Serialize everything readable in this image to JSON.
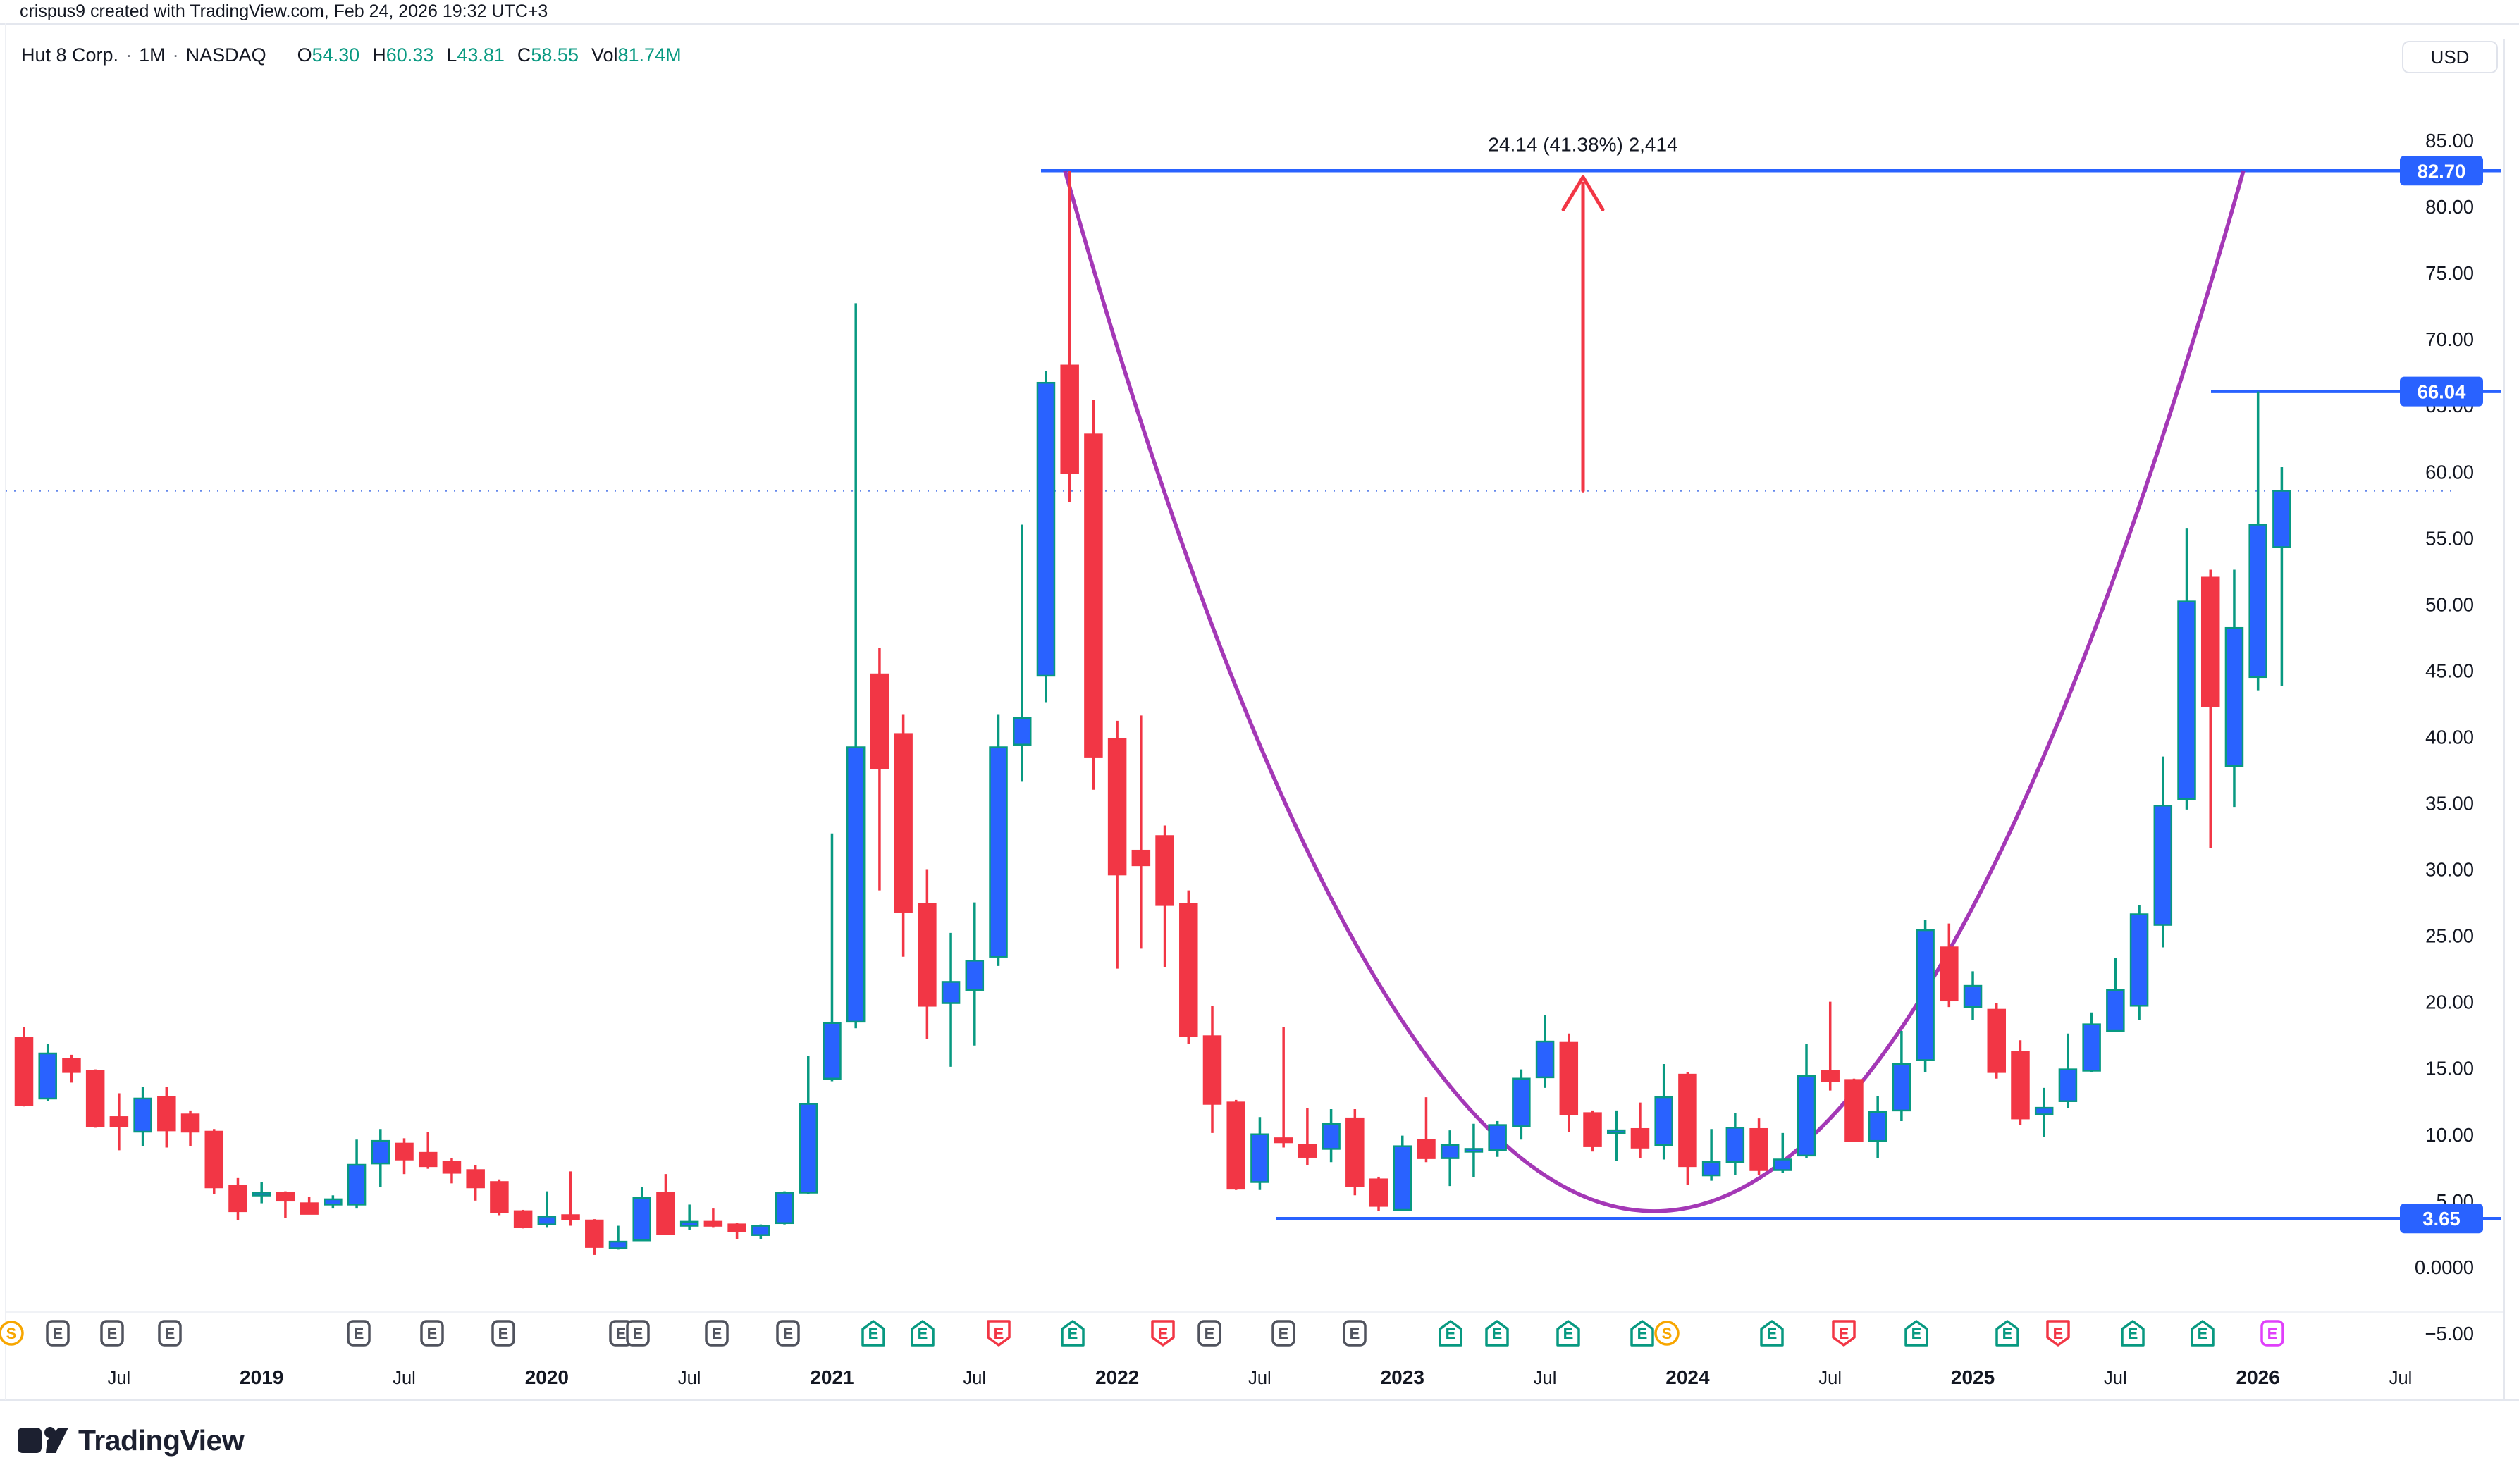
{
  "attribution": "crispus9 created with TradingView.com, Feb 24, 2026 19:32 UTC+3",
  "header": {
    "symbol_title": "Hut 8 Corp.",
    "interval": "1M",
    "exchange": "NASDAQ",
    "ohlc": [
      {
        "label": "O",
        "value": "54.30"
      },
      {
        "label": "H",
        "value": "60.33"
      },
      {
        "label": "L",
        "value": "43.81"
      },
      {
        "label": "C",
        "value": "58.55"
      },
      {
        "label": "Vol",
        "value": "81.74M"
      }
    ],
    "currency": "USD"
  },
  "logo_text": "TradingView",
  "chart_data": {
    "type": "candlestick",
    "title": "Hut 8 Corp. · 1M · NASDAQ",
    "ylabel": "USD",
    "ylim": [
      -7.5,
      87.5
    ],
    "grid": false,
    "price_ticks": [
      {
        "label": "85.00",
        "price": 85
      },
      {
        "label": "80.00",
        "price": 80
      },
      {
        "label": "75.00",
        "price": 75
      },
      {
        "label": "70.00",
        "price": 70
      },
      {
        "label": "65.00",
        "price": 65
      },
      {
        "label": "60.00",
        "price": 60
      },
      {
        "label": "55.00",
        "price": 55
      },
      {
        "label": "50.00",
        "price": 50
      },
      {
        "label": "45.00",
        "price": 45
      },
      {
        "label": "40.00",
        "price": 40
      },
      {
        "label": "35.00",
        "price": 35
      },
      {
        "label": "30.00",
        "price": 30
      },
      {
        "label": "25.00",
        "price": 25
      },
      {
        "label": "20.00",
        "price": 20
      },
      {
        "label": "15.00",
        "price": 15
      },
      {
        "label": "10.00",
        "price": 10
      },
      {
        "label": "5.00",
        "price": 5
      },
      {
        "label": "0.0000",
        "price": 0
      },
      {
        "label": "−5.00",
        "price": -5
      }
    ],
    "time_labels": [
      {
        "text": "Jul",
        "index": 4,
        "bold": false
      },
      {
        "text": "2019",
        "index": 10,
        "bold": true
      },
      {
        "text": "Jul",
        "index": 16,
        "bold": false
      },
      {
        "text": "2020",
        "index": 22,
        "bold": true
      },
      {
        "text": "Jul",
        "index": 28,
        "bold": false
      },
      {
        "text": "2021",
        "index": 34,
        "bold": true
      },
      {
        "text": "Jul",
        "index": 40,
        "bold": false
      },
      {
        "text": "2022",
        "index": 46,
        "bold": true
      },
      {
        "text": "Jul",
        "index": 52,
        "bold": false
      },
      {
        "text": "2023",
        "index": 58,
        "bold": true
      },
      {
        "text": "Jul",
        "index": 64,
        "bold": false
      },
      {
        "text": "2024",
        "index": 70,
        "bold": true
      },
      {
        "text": "Jul",
        "index": 76,
        "bold": false
      },
      {
        "text": "2025",
        "index": 82,
        "bold": true
      },
      {
        "text": "Jul",
        "index": 88,
        "bold": false
      },
      {
        "text": "2026",
        "index": 94,
        "bold": true
      },
      {
        "text": "Jul",
        "index": 100,
        "bold": false
      }
    ],
    "candles": [
      [
        "2018-03",
        17.3,
        18.1,
        12.1,
        12.2
      ],
      [
        "2018-04",
        12.7,
        16.8,
        12.5,
        16.1
      ],
      [
        "2018-05",
        15.7,
        16.0,
        13.9,
        14.7
      ],
      [
        "2018-06",
        14.8,
        14.9,
        10.5,
        10.6
      ],
      [
        "2018-07",
        11.3,
        13.1,
        8.8,
        10.6
      ],
      [
        "2018-08",
        10.2,
        13.6,
        9.1,
        12.7
      ],
      [
        "2018-09",
        12.8,
        13.6,
        9.0,
        10.3
      ],
      [
        "2018-10",
        11.5,
        11.8,
        9.1,
        10.2
      ],
      [
        "2018-11",
        10.2,
        10.4,
        5.5,
        6.0
      ],
      [
        "2018-12",
        6.1,
        6.7,
        3.5,
        4.2
      ],
      [
        "2019-01",
        5.5,
        6.4,
        4.8,
        5.6
      ],
      [
        "2019-02",
        5.6,
        5.7,
        3.7,
        5.0
      ],
      [
        "2019-03",
        4.8,
        5.3,
        4.0,
        4.0
      ],
      [
        "2019-04",
        4.7,
        5.4,
        4.4,
        5.1
      ],
      [
        "2019-05",
        4.7,
        9.6,
        4.4,
        7.7
      ],
      [
        "2019-06",
        7.8,
        10.4,
        6.0,
        9.5
      ],
      [
        "2019-07",
        9.3,
        9.7,
        7.0,
        8.1
      ],
      [
        "2019-08",
        8.6,
        10.2,
        7.4,
        7.6
      ],
      [
        "2019-09",
        7.9,
        8.2,
        6.3,
        7.1
      ],
      [
        "2019-10",
        7.3,
        7.7,
        5.0,
        6.0
      ],
      [
        "2019-11",
        6.4,
        6.6,
        3.9,
        4.1
      ],
      [
        "2019-12",
        4.2,
        4.3,
        2.9,
        3.0
      ],
      [
        "2020-01",
        3.2,
        5.7,
        3.0,
        3.8
      ],
      [
        "2020-02",
        3.9,
        7.2,
        3.1,
        3.6
      ],
      [
        "2020-03",
        3.5,
        3.6,
        0.9,
        1.5
      ],
      [
        "2020-04",
        1.4,
        3.1,
        1.3,
        1.9
      ],
      [
        "2020-05",
        2.0,
        6.0,
        2.0,
        5.2
      ],
      [
        "2020-06",
        5.6,
        7.0,
        2.4,
        2.5
      ],
      [
        "2020-07",
        3.1,
        4.7,
        2.8,
        3.4
      ],
      [
        "2020-08",
        3.4,
        4.4,
        3.0,
        3.1
      ],
      [
        "2020-09",
        3.2,
        3.3,
        2.1,
        2.7
      ],
      [
        "2020-10",
        2.4,
        3.2,
        2.1,
        3.1
      ],
      [
        "2020-11",
        3.3,
        5.7,
        3.2,
        5.6
      ],
      [
        "2020-12",
        5.6,
        15.9,
        5.5,
        12.3
      ],
      [
        "2021-01",
        14.2,
        32.7,
        14.0,
        18.4
      ],
      [
        "2021-02",
        18.5,
        72.7,
        18.0,
        39.2
      ],
      [
        "2021-03",
        44.7,
        46.7,
        28.4,
        37.6
      ],
      [
        "2021-04",
        40.2,
        41.7,
        23.4,
        26.8
      ],
      [
        "2021-05",
        27.4,
        30.0,
        17.2,
        19.7
      ],
      [
        "2021-06",
        19.9,
        25.2,
        15.1,
        21.5
      ],
      [
        "2021-07",
        20.9,
        27.5,
        16.7,
        23.1
      ],
      [
        "2021-08",
        23.4,
        41.7,
        22.7,
        39.2
      ],
      [
        "2021-09",
        39.4,
        56.0,
        36.6,
        41.4
      ],
      [
        "2021-10",
        44.6,
        67.6,
        42.6,
        66.7
      ],
      [
        "2021-11",
        68.0,
        82.7,
        57.7,
        59.9
      ],
      [
        "2021-12",
        62.8,
        65.4,
        36.0,
        38.5
      ],
      [
        "2022-01",
        39.8,
        41.2,
        22.5,
        29.6
      ],
      [
        "2022-02",
        31.4,
        41.6,
        24.0,
        30.3
      ],
      [
        "2022-03",
        32.5,
        33.3,
        22.6,
        27.3
      ],
      [
        "2022-04",
        27.4,
        28.4,
        16.8,
        17.4
      ],
      [
        "2022-05",
        17.4,
        19.7,
        10.1,
        12.3
      ],
      [
        "2022-06",
        12.4,
        12.6,
        5.8,
        5.9
      ],
      [
        "2022-07",
        6.4,
        11.3,
        5.8,
        10.0
      ],
      [
        "2022-08",
        9.7,
        18.1,
        9.0,
        9.4
      ],
      [
        "2022-09",
        9.2,
        12.0,
        7.7,
        8.3
      ],
      [
        "2022-10",
        8.9,
        11.9,
        7.9,
        10.8
      ],
      [
        "2022-11",
        11.2,
        11.9,
        5.4,
        6.1
      ],
      [
        "2022-12",
        6.6,
        6.8,
        4.2,
        4.6
      ],
      [
        "2023-01",
        4.3,
        9.9,
        4.3,
        9.1
      ],
      [
        "2023-02",
        9.6,
        12.8,
        7.9,
        8.2
      ],
      [
        "2023-03",
        8.2,
        10.3,
        6.1,
        9.2
      ],
      [
        "2023-04",
        8.8,
        10.8,
        6.8,
        8.9
      ],
      [
        "2023-05",
        8.8,
        11.0,
        8.3,
        10.7
      ],
      [
        "2023-06",
        10.6,
        14.9,
        9.6,
        14.2
      ],
      [
        "2023-07",
        14.3,
        19.0,
        13.5,
        17.0
      ],
      [
        "2023-08",
        16.9,
        17.6,
        10.2,
        11.5
      ],
      [
        "2023-09",
        11.6,
        11.8,
        8.7,
        9.1
      ],
      [
        "2023-10",
        10.1,
        11.8,
        8.0,
        10.3
      ],
      [
        "2023-11",
        10.4,
        12.4,
        8.2,
        9.0
      ],
      [
        "2023-12",
        9.2,
        15.3,
        8.1,
        12.8
      ],
      [
        "2024-01",
        14.5,
        14.7,
        6.2,
        7.6
      ],
      [
        "2024-02",
        6.9,
        10.4,
        6.5,
        7.9
      ],
      [
        "2024-03",
        7.9,
        11.6,
        6.9,
        10.5
      ],
      [
        "2024-04",
        10.4,
        11.2,
        6.9,
        7.3
      ],
      [
        "2024-05",
        7.3,
        10.1,
        7.1,
        8.1
      ],
      [
        "2024-06",
        8.4,
        16.8,
        8.2,
        14.4
      ],
      [
        "2024-07",
        14.8,
        20.0,
        13.3,
        14.0
      ],
      [
        "2024-08",
        14.1,
        14.2,
        9.4,
        9.5
      ],
      [
        "2024-09",
        9.5,
        12.9,
        8.2,
        11.7
      ],
      [
        "2024-10",
        11.8,
        17.8,
        11.0,
        15.3
      ],
      [
        "2024-11",
        15.6,
        26.2,
        14.7,
        25.4
      ],
      [
        "2024-12",
        24.1,
        25.9,
        19.6,
        20.1
      ],
      [
        "2025-01",
        19.6,
        22.3,
        18.6,
        21.2
      ],
      [
        "2025-02",
        19.4,
        19.9,
        14.2,
        14.7
      ],
      [
        "2025-03",
        16.2,
        17.1,
        10.7,
        11.2
      ],
      [
        "2025-04",
        11.5,
        13.5,
        9.8,
        12.0
      ],
      [
        "2025-05",
        12.5,
        17.6,
        12.0,
        14.9
      ],
      [
        "2025-06",
        14.8,
        19.2,
        14.7,
        18.3
      ],
      [
        "2025-07",
        17.8,
        23.3,
        17.7,
        20.9
      ],
      [
        "2025-08",
        19.7,
        27.3,
        18.6,
        26.6
      ],
      [
        "2025-09",
        25.8,
        38.5,
        24.1,
        34.8
      ],
      [
        "2025-10",
        35.3,
        55.7,
        34.5,
        50.2
      ],
      [
        "2025-11",
        52.0,
        52.6,
        31.6,
        42.3
      ],
      [
        "2025-12",
        37.8,
        52.6,
        34.7,
        48.2
      ],
      [
        "2026-01",
        44.5,
        66.04,
        43.5,
        56.0
      ],
      [
        "2026-02",
        54.3,
        60.33,
        43.81,
        58.55
      ]
    ],
    "current_price": {
      "price": 58.55,
      "style": "dotted"
    },
    "levels": [
      {
        "label": "82.70",
        "price": 82.7,
        "x_start": 1477
      },
      {
        "label": "66.04",
        "price": 66.04,
        "x_start": 3137
      },
      {
        "label": "3.65",
        "price": 3.65,
        "x_start": 1810
      }
    ],
    "measurement": {
      "text": "24.14 (41.38%) 2,414",
      "x": 2246,
      "from_price": 58.56,
      "to_price": 82.7
    },
    "parabola": {
      "x_start": 1511,
      "x_end": 3183,
      "top_price": 82.7,
      "vertex_price": 4.2
    },
    "badges": [
      {
        "x": 16,
        "glyph": "S",
        "color": "orange"
      },
      {
        "x": 82,
        "glyph": "E",
        "color": "gray"
      },
      {
        "x": 159,
        "glyph": "E",
        "color": "gray"
      },
      {
        "x": 241,
        "glyph": "E",
        "color": "gray"
      },
      {
        "x": 509,
        "glyph": "E",
        "color": "gray"
      },
      {
        "x": 613,
        "glyph": "E",
        "color": "gray"
      },
      {
        "x": 714,
        "glyph": "E",
        "color": "gray"
      },
      {
        "x": 881,
        "glyph": "E",
        "color": "gray"
      },
      {
        "x": 905,
        "glyph": "E",
        "color": "gray"
      },
      {
        "x": 1017,
        "glyph": "E",
        "color": "gray"
      },
      {
        "x": 1118,
        "glyph": "E",
        "color": "gray"
      },
      {
        "x": 1239,
        "glyph": "E",
        "color": "teal"
      },
      {
        "x": 1309,
        "glyph": "E",
        "color": "teal"
      },
      {
        "x": 1417,
        "glyph": "E",
        "color": "red"
      },
      {
        "x": 1522,
        "glyph": "E",
        "color": "teal"
      },
      {
        "x": 1650,
        "glyph": "E",
        "color": "red"
      },
      {
        "x": 1716,
        "glyph": "E",
        "color": "gray"
      },
      {
        "x": 1821,
        "glyph": "E",
        "color": "gray"
      },
      {
        "x": 1922,
        "glyph": "E",
        "color": "gray"
      },
      {
        "x": 2058,
        "glyph": "E",
        "color": "teal"
      },
      {
        "x": 2124,
        "glyph": "E",
        "color": "teal"
      },
      {
        "x": 2225,
        "glyph": "E",
        "color": "teal"
      },
      {
        "x": 2330,
        "glyph": "E",
        "color": "teal"
      },
      {
        "x": 2365,
        "glyph": "S",
        "color": "orange"
      },
      {
        "x": 2514,
        "glyph": "E",
        "color": "teal"
      },
      {
        "x": 2616,
        "glyph": "E",
        "color": "red"
      },
      {
        "x": 2719,
        "glyph": "E",
        "color": "teal"
      },
      {
        "x": 2848,
        "glyph": "E",
        "color": "teal"
      },
      {
        "x": 2920,
        "glyph": "E",
        "color": "red"
      },
      {
        "x": 3026,
        "glyph": "E",
        "color": "teal"
      },
      {
        "x": 3125,
        "glyph": "E",
        "color": "teal"
      },
      {
        "x": 3224,
        "glyph": "E",
        "color": "magenta"
      }
    ],
    "colors": {
      "up_body": "#2962FF",
      "up_border": "#089981",
      "up_wick": "#089981",
      "down_body": "#F23645",
      "down_border": "#F23645",
      "down_wick": "#F23645",
      "level_line": "#2962FF",
      "level_label_bg": "#2962FF",
      "level_label_text": "#ffffff",
      "current_price_line": "#4a74e8",
      "measurement_arrow": "#F23645",
      "parabola": "#9C27B0",
      "axis_text": "#131722",
      "ohlc_value": "#089981",
      "badge_gray": "#50535E",
      "badge_teal": "#089981",
      "badge_red": "#F23645",
      "badge_magenta": "#E040FB",
      "badge_orange": "#F7A600",
      "border": "#e4e7ee"
    }
  }
}
